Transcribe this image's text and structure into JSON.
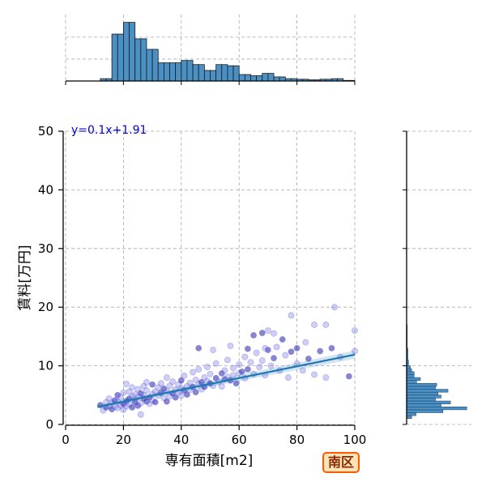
{
  "chart_data": {
    "type": "scatter",
    "xlabel": "専有面積[m2]",
    "ylabel": "賃料[万円]",
    "xlim": [
      0,
      100
    ],
    "ylim": [
      0,
      50
    ],
    "xticks": [
      0,
      20,
      40,
      60,
      80,
      100
    ],
    "yticks": [
      0,
      10,
      20,
      30,
      40,
      50
    ],
    "grid": true,
    "regression": {
      "label": "y=0.1x+1.91",
      "slope": 0.1,
      "intercept": 1.91,
      "x_range": [
        11,
        100
      ]
    },
    "points": [
      [
        12,
        3.3
      ],
      [
        13,
        2.4
      ],
      [
        14,
        3.8
      ],
      [
        14,
        2.9
      ],
      [
        15,
        3.1
      ],
      [
        15,
        4.4
      ],
      [
        16,
        2.6
      ],
      [
        16,
        3.7
      ],
      [
        17,
        3.0
      ],
      [
        17,
        4.1
      ],
      [
        18,
        2.8
      ],
      [
        18,
        3.9
      ],
      [
        18,
        5.0
      ],
      [
        19,
        3.2
      ],
      [
        19,
        4.6
      ],
      [
        20,
        3.5
      ],
      [
        20,
        2.5
      ],
      [
        20,
        5.4
      ],
      [
        21,
        4.0
      ],
      [
        21,
        3.1
      ],
      [
        21,
        6.9
      ],
      [
        22,
        4.4
      ],
      [
        22,
        3.4
      ],
      [
        22,
        5.6
      ],
      [
        23,
        2.9
      ],
      [
        23,
        4.8
      ],
      [
        23,
        6.3
      ],
      [
        24,
        3.8
      ],
      [
        24,
        5.1
      ],
      [
        24,
        4.2
      ],
      [
        25,
        3.2
      ],
      [
        25,
        6.0
      ],
      [
        25,
        4.7
      ],
      [
        26,
        5.3
      ],
      [
        26,
        3.6
      ],
      [
        26,
        1.7
      ],
      [
        27,
        4.4
      ],
      [
        27,
        6.5
      ],
      [
        27,
        5.0
      ],
      [
        28,
        3.9
      ],
      [
        28,
        5.8
      ],
      [
        28,
        7.2
      ],
      [
        29,
        4.6
      ],
      [
        29,
        3.5
      ],
      [
        30,
        5.2
      ],
      [
        30,
        6.8
      ],
      [
        30,
        4.1
      ],
      [
        31,
        5.6
      ],
      [
        31,
        3.8
      ],
      [
        32,
        6.3
      ],
      [
        32,
        4.9
      ],
      [
        33,
        5.4
      ],
      [
        33,
        7.0
      ],
      [
        34,
        4.5
      ],
      [
        34,
        6.1
      ],
      [
        35,
        5.7
      ],
      [
        35,
        8.0
      ],
      [
        35,
        3.9
      ],
      [
        36,
        6.6
      ],
      [
        36,
        4.8
      ],
      [
        37,
        5.3
      ],
      [
        37,
        7.3
      ],
      [
        38,
        6.0
      ],
      [
        38,
        4.6
      ],
      [
        39,
        6.8
      ],
      [
        39,
        5.5
      ],
      [
        40,
        7.5
      ],
      [
        40,
        6.2
      ],
      [
        40,
        4.9
      ],
      [
        41,
        5.8
      ],
      [
        41,
        8.3
      ],
      [
        42,
        6.5
      ],
      [
        42,
        5.1
      ],
      [
        43,
        7.1
      ],
      [
        43,
        5.9
      ],
      [
        44,
        6.4
      ],
      [
        44,
        8.9
      ],
      [
        45,
        7.6
      ],
      [
        45,
        5.5
      ],
      [
        46,
        6.9
      ],
      [
        46,
        9.4
      ],
      [
        47,
        7.2
      ],
      [
        47,
        6.0
      ],
      [
        48,
        8.0
      ],
      [
        48,
        6.4
      ],
      [
        49,
        7.4
      ],
      [
        49,
        9.8
      ],
      [
        50,
        7.0
      ],
      [
        50,
        8.6
      ],
      [
        51,
        6.6
      ],
      [
        52,
        7.9
      ],
      [
        52,
        10.4
      ],
      [
        53,
        7.3
      ],
      [
        54,
        8.7
      ],
      [
        54,
        6.5
      ],
      [
        55,
        9.2
      ],
      [
        55,
        7.7
      ],
      [
        56,
        8.1
      ],
      [
        56,
        11.0
      ],
      [
        57,
        7.5
      ],
      [
        58,
        9.6
      ],
      [
        58,
        8.4
      ],
      [
        59,
        7.0
      ],
      [
        60,
        10.2
      ],
      [
        60,
        8.7
      ],
      [
        61,
        9.0
      ],
      [
        62,
        11.5
      ],
      [
        62,
        7.9
      ],
      [
        63,
        9.4
      ],
      [
        64,
        10.6
      ],
      [
        65,
        8.6
      ],
      [
        65,
        15.2
      ],
      [
        66,
        12.2
      ],
      [
        67,
        9.8
      ],
      [
        68,
        15.6
      ],
      [
        68,
        10.9
      ],
      [
        69,
        8.4
      ],
      [
        70,
        12.7
      ],
      [
        70,
        16.0
      ],
      [
        71,
        10.0
      ],
      [
        72,
        11.3
      ],
      [
        73,
        13.2
      ],
      [
        74,
        9.2
      ],
      [
        75,
        14.5
      ],
      [
        76,
        11.8
      ],
      [
        77,
        8.0
      ],
      [
        78,
        12.4
      ],
      [
        78,
        18.6
      ],
      [
        80,
        10.4
      ],
      [
        80,
        13.0
      ],
      [
        82,
        9.2
      ],
      [
        83,
        14.0
      ],
      [
        84,
        11.2
      ],
      [
        86,
        8.5
      ],
      [
        86,
        17.0
      ],
      [
        88,
        12.5
      ],
      [
        90,
        8.0
      ],
      [
        90,
        17.0
      ],
      [
        92,
        13.0
      ],
      [
        93,
        20.0
      ],
      [
        95,
        11.5
      ],
      [
        98,
        8.2
      ],
      [
        100,
        16.0
      ],
      [
        100,
        12.5
      ],
      [
        46,
        13.0
      ],
      [
        51,
        12.7
      ],
      [
        57,
        13.4
      ],
      [
        63,
        12.9
      ],
      [
        69,
        13.0
      ],
      [
        72,
        15.5
      ]
    ],
    "x_histogram": {
      "bin_edges": [
        12,
        14,
        16,
        18,
        20,
        22,
        24,
        26,
        28,
        30,
        32,
        34,
        36,
        38,
        40,
        42,
        44,
        46,
        48,
        50,
        52,
        54,
        56,
        58,
        60,
        62,
        64,
        66,
        68,
        70,
        72,
        74,
        76,
        78,
        80,
        82,
        84,
        86,
        88,
        90,
        92,
        94,
        96,
        98,
        100
      ],
      "counts": [
        4,
        4,
        80,
        80,
        100,
        100,
        72,
        72,
        54,
        54,
        31,
        31,
        31,
        31,
        35,
        35,
        28,
        28,
        18,
        18,
        28,
        28,
        26,
        26,
        11,
        11,
        9,
        9,
        13,
        13,
        7,
        7,
        4,
        4,
        3,
        3,
        2,
        2,
        3,
        3,
        4,
        4,
        1,
        1
      ]
    },
    "y_histogram": {
      "bin_edges": [
        1,
        1.5,
        2,
        2.5,
        3,
        3.5,
        4,
        4.5,
        5,
        5.5,
        6,
        6.5,
        7,
        7.5,
        8,
        8.5,
        9,
        9.5,
        10,
        10.5,
        11,
        11.5,
        12,
        12.5,
        13,
        13.5,
        14,
        14.5,
        15,
        15.5,
        16,
        16.5,
        17
      ],
      "counts": [
        8,
        15,
        58,
        96,
        55,
        70,
        46,
        55,
        50,
        66,
        46,
        48,
        16,
        22,
        12,
        12,
        8,
        6,
        3,
        3,
        2,
        2,
        2,
        2,
        1,
        1,
        1,
        1,
        1,
        1,
        1,
        1
      ]
    },
    "colors": {
      "scatter_fill": "#6a6adf",
      "scatter_dark": "#2020aa",
      "regression_line": "#1f77b4",
      "hist_fill": "#4a90c4",
      "grid": "#aaaaaa"
    }
  },
  "badge": {
    "label": "南区",
    "background": "#fde3b8",
    "border": "#ff5a00"
  }
}
